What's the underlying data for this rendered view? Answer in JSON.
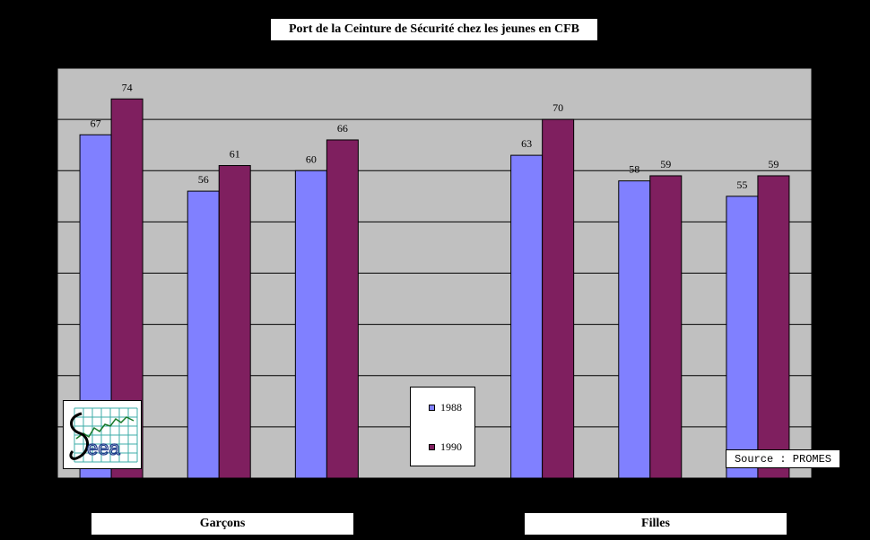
{
  "chart_data": {
    "type": "bar",
    "title": "Port de la Ceinture de Sécurité chez les jeunes en CFB",
    "xlabel": "",
    "ylabel": "",
    "ylim": [
      0,
      80
    ],
    "grid": true,
    "legend_position": "center-bottom",
    "categories": [
      "",
      "",
      "",
      "",
      "",
      "",
      ""
    ],
    "series": [
      {
        "name": "1988",
        "color": "#8080FF",
        "values": [
          67,
          56,
          60,
          null,
          63,
          58,
          55
        ]
      },
      {
        "name": "1990",
        "color": "#7F1F5F",
        "values": [
          74,
          61,
          66,
          null,
          70,
          59,
          59
        ]
      }
    ],
    "groups": [
      "Garçons",
      "Filles"
    ]
  },
  "source_label": "Source : PROMES",
  "colors": {
    "background": "#000000",
    "plot_area": "#C0C0C0",
    "gridline": "#000000"
  }
}
